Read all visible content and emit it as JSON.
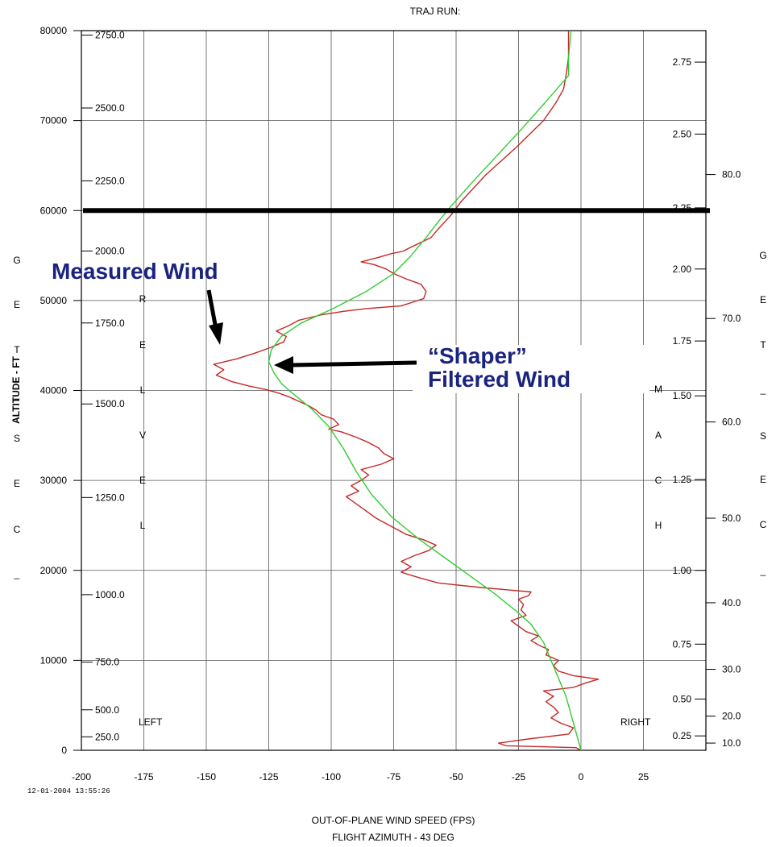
{
  "chart_data": {
    "type": "line",
    "title": "TRAJ RUN:",
    "timestamp": "12-01-2004 13:55:26",
    "xlabel_line1": "OUT-OF-PLANE WIND SPEED (FPS)",
    "xlabel_line2": "FLIGHT AZIMUTH - 43 DEG",
    "ylabel": "ALTITUDE - FT",
    "xlim": [
      -200,
      50
    ],
    "ylim": [
      0,
      80000
    ],
    "x_ticks": [
      -200,
      -175,
      -150,
      -125,
      -100,
      -75,
      -50,
      -25,
      0,
      25
    ],
    "y_ticks": [
      0,
      10000,
      20000,
      30000,
      40000,
      50000,
      60000,
      70000,
      80000
    ],
    "grid": true,
    "reference_altitude": 60000,
    "left_side_text": "GET_SEC_",
    "right_side_text": "GET_SEC_",
    "relvel_text": "RELVEL",
    "mach_text": "MACH",
    "left_label": "LEFT",
    "right_label": "RIGHT",
    "axes_relvel": [
      {
        "label": "250.0",
        "alt": 1500
      },
      {
        "label": "500.0",
        "alt": 4500
      },
      {
        "label": "750.0",
        "alt": 9800
      },
      {
        "label": "1000.0",
        "alt": 17300
      },
      {
        "label": "1250.0",
        "alt": 28100
      },
      {
        "label": "1500.0",
        "alt": 38500
      },
      {
        "label": "1750.0",
        "alt": 47500
      },
      {
        "label": "2000.0",
        "alt": 55500
      },
      {
        "label": "2250.0",
        "alt": 63300
      },
      {
        "label": "2500.0",
        "alt": 71400
      },
      {
        "label": "2750.0",
        "alt": 79500
      }
    ],
    "axes_mach": [
      {
        "label": "0.25",
        "alt": 1600
      },
      {
        "label": "0.50",
        "alt": 5700
      },
      {
        "label": "0.75",
        "alt": 11800
      },
      {
        "label": "1.00",
        "alt": 20000
      },
      {
        "label": "1.25",
        "alt": 30100
      },
      {
        "label": "1.50",
        "alt": 39400
      },
      {
        "label": "1.75",
        "alt": 45500
      },
      {
        "label": "2.00",
        "alt": 53500
      },
      {
        "label": "2.25",
        "alt": 60300
      },
      {
        "label": "2.50",
        "alt": 68500
      },
      {
        "label": "2.75",
        "alt": 76500
      }
    ],
    "axes_get": [
      {
        "label": "10.0",
        "alt": 800
      },
      {
        "label": "20.0",
        "alt": 3800
      },
      {
        "label": "30.0",
        "alt": 9000
      },
      {
        "label": "40.0",
        "alt": 16400
      },
      {
        "label": "50.0",
        "alt": 25800
      },
      {
        "label": "60.0",
        "alt": 36500
      },
      {
        "label": "70.0",
        "alt": 48000
      },
      {
        "label": "80.0",
        "alt": 64000
      }
    ],
    "annotations": [
      {
        "text": "Measured Wind",
        "color": "#1a237e"
      },
      {
        "text": "“Shaper”",
        "color": "#1a237e"
      },
      {
        "text": "Filtered Wind",
        "color": "#1a237e"
      }
    ],
    "series": [
      {
        "color": "#c62828",
        "points": [
          [
            0,
            0
          ],
          [
            -2,
            300
          ],
          [
            -30,
            500
          ],
          [
            -33,
            800
          ],
          [
            -20,
            1300
          ],
          [
            -5,
            1800
          ],
          [
            -3,
            2500
          ],
          [
            -8,
            3000
          ],
          [
            -12,
            3600
          ],
          [
            -9,
            4200
          ],
          [
            -11,
            4800
          ],
          [
            -14,
            5400
          ],
          [
            -11,
            6000
          ],
          [
            -15,
            6600
          ],
          [
            -3,
            7000
          ],
          [
            2,
            7500
          ],
          [
            7,
            7900
          ],
          [
            -3,
            8300
          ],
          [
            -9,
            8800
          ],
          [
            -11,
            9400
          ],
          [
            -9,
            10000
          ],
          [
            -14,
            10600
          ],
          [
            -13,
            11200
          ],
          [
            -17,
            11700
          ],
          [
            -20,
            12200
          ],
          [
            -17,
            12700
          ],
          [
            -22,
            13200
          ],
          [
            -25,
            13800
          ],
          [
            -28,
            14400
          ],
          [
            -22,
            15000
          ],
          [
            -24,
            15600
          ],
          [
            -23,
            16200
          ],
          [
            -25,
            16800
          ],
          [
            -21,
            17200
          ],
          [
            -20,
            17600
          ],
          [
            -40,
            18100
          ],
          [
            -57,
            18600
          ],
          [
            -65,
            19200
          ],
          [
            -72,
            19800
          ],
          [
            -68,
            20400
          ],
          [
            -72,
            21000
          ],
          [
            -67,
            21600
          ],
          [
            -61,
            22200
          ],
          [
            -58,
            22800
          ],
          [
            -63,
            23400
          ],
          [
            -70,
            24000
          ],
          [
            -74,
            24600
          ],
          [
            -78,
            25200
          ],
          [
            -82,
            25800
          ],
          [
            -85,
            26400
          ],
          [
            -88,
            27000
          ],
          [
            -91,
            27600
          ],
          [
            -94,
            28200
          ],
          [
            -89,
            28800
          ],
          [
            -92,
            29400
          ],
          [
            -88,
            30000
          ],
          [
            -85,
            30600
          ],
          [
            -88,
            31200
          ],
          [
            -80,
            31800
          ],
          [
            -75,
            32400
          ],
          [
            -79,
            33000
          ],
          [
            -81,
            33600
          ],
          [
            -85,
            34200
          ],
          [
            -90,
            34800
          ],
          [
            -96,
            35400
          ],
          [
            -101,
            35700
          ],
          [
            -97,
            36200
          ],
          [
            -99,
            36800
          ],
          [
            -104,
            37300
          ],
          [
            -106,
            37800
          ],
          [
            -109,
            38300
          ],
          [
            -113,
            38800
          ],
          [
            -117,
            39300
          ],
          [
            -121,
            39700
          ],
          [
            -126,
            40100
          ],
          [
            -133,
            40500
          ],
          [
            -140,
            41000
          ],
          [
            -146,
            41700
          ],
          [
            -143,
            42300
          ],
          [
            -147,
            42900
          ],
          [
            -138,
            43500
          ],
          [
            -131,
            44100
          ],
          [
            -124,
            44800
          ],
          [
            -119,
            45400
          ],
          [
            -118,
            46000
          ],
          [
            -122,
            46600
          ],
          [
            -117,
            47200
          ],
          [
            -113,
            47800
          ],
          [
            -104,
            48400
          ],
          [
            -95,
            48800
          ],
          [
            -86,
            49100
          ],
          [
            -72,
            49400
          ],
          [
            -63,
            50200
          ],
          [
            -62,
            51000
          ],
          [
            -64,
            51800
          ],
          [
            -70,
            52400
          ],
          [
            -75,
            53000
          ],
          [
            -78,
            53500
          ],
          [
            -83,
            54000
          ],
          [
            -88,
            54300
          ],
          [
            -81,
            54800
          ],
          [
            -76,
            55200
          ],
          [
            -71,
            55500
          ],
          [
            -69,
            55800
          ],
          [
            -60,
            57000
          ],
          [
            -57,
            58000
          ],
          [
            -52,
            59500
          ],
          [
            -48,
            61000
          ],
          [
            -38,
            64000
          ],
          [
            -26,
            67000
          ],
          [
            -15,
            70000
          ],
          [
            -10,
            72000
          ],
          [
            -7,
            73500
          ],
          [
            -6,
            75000
          ],
          [
            -5,
            77000
          ],
          [
            -5,
            80000
          ]
        ]
      },
      {
        "color": "#33cc33",
        "points": [
          [
            0,
            0
          ],
          [
            -2,
            2000
          ],
          [
            -4,
            4000
          ],
          [
            -6,
            6000
          ],
          [
            -9,
            8000
          ],
          [
            -12,
            10000
          ],
          [
            -15,
            12000
          ],
          [
            -20,
            14000
          ],
          [
            -26,
            15500
          ],
          [
            -35,
            17500
          ],
          [
            -45,
            19500
          ],
          [
            -55,
            21500
          ],
          [
            -65,
            23500
          ],
          [
            -76,
            26000
          ],
          [
            -84,
            28500
          ],
          [
            -90,
            31000
          ],
          [
            -95,
            33500
          ],
          [
            -101,
            36000
          ],
          [
            -108,
            38000
          ],
          [
            -116,
            39800
          ],
          [
            -120,
            40800
          ],
          [
            -123,
            42000
          ],
          [
            -125,
            43200
          ],
          [
            -124,
            44500
          ],
          [
            -120,
            46000
          ],
          [
            -112,
            47500
          ],
          [
            -100,
            49000
          ],
          [
            -86,
            51000
          ],
          [
            -75,
            53000
          ],
          [
            -68,
            55000
          ],
          [
            -62,
            57000
          ],
          [
            -57,
            58800
          ],
          [
            -52,
            60500
          ],
          [
            -44,
            63000
          ],
          [
            -34,
            66000
          ],
          [
            -24,
            69000
          ],
          [
            -15,
            71800
          ],
          [
            -5,
            75000
          ],
          [
            -5,
            77000
          ],
          [
            -4,
            80000
          ]
        ]
      }
    ]
  }
}
